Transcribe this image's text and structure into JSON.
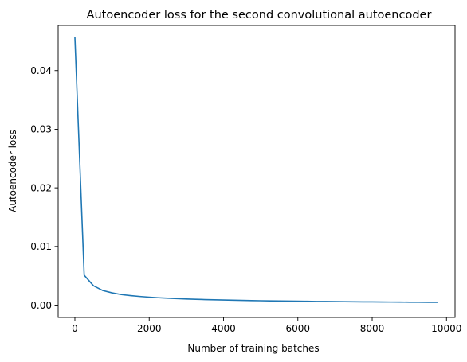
{
  "chart_data": {
    "type": "line",
    "title": "Autoencoder loss for the second convolutional autoencoder",
    "xlabel": "Number of training batches",
    "ylabel": "Autoencoder loss",
    "xlim": [
      -450,
      10230
    ],
    "ylim": [
      -0.0021,
      0.0477
    ],
    "xticks": [
      0,
      2000,
      4000,
      6000,
      8000,
      10000
    ],
    "xtick_labels": [
      "0",
      "2000",
      "4000",
      "6000",
      "8000",
      "10000"
    ],
    "yticks": [
      0.0,
      0.01,
      0.02,
      0.03,
      0.04
    ],
    "ytick_labels": [
      "0.00",
      "0.01",
      "0.02",
      "0.03",
      "0.04"
    ],
    "grid": false,
    "series": [
      {
        "color": "#1f77b4",
        "x": [
          0,
          250,
          500,
          750,
          1000,
          1250,
          1500,
          1750,
          2000,
          2250,
          2500,
          2750,
          3000,
          3250,
          3500,
          3750,
          4000,
          4250,
          4500,
          4750,
          5000,
          5250,
          5500,
          5750,
          6000,
          6250,
          6500,
          6750,
          7000,
          7250,
          7500,
          7750,
          8000,
          8250,
          8500,
          8750,
          9000,
          9250,
          9500,
          9750
        ],
        "y": [
          0.0457,
          0.0051,
          0.0033,
          0.0025,
          0.0021,
          0.0018,
          0.00162,
          0.00148,
          0.00136,
          0.00126,
          0.00118,
          0.00111,
          0.00105,
          0.001,
          0.00095,
          0.00091,
          0.00087,
          0.00084,
          0.00081,
          0.00078,
          0.00075,
          0.00073,
          0.00071,
          0.00069,
          0.00067,
          0.00065,
          0.00063,
          0.00062,
          0.0006,
          0.00059,
          0.00057,
          0.00056,
          0.00055,
          0.00054,
          0.00053,
          0.00052,
          0.00051,
          0.0005,
          0.00049,
          0.00048
        ]
      }
    ]
  }
}
